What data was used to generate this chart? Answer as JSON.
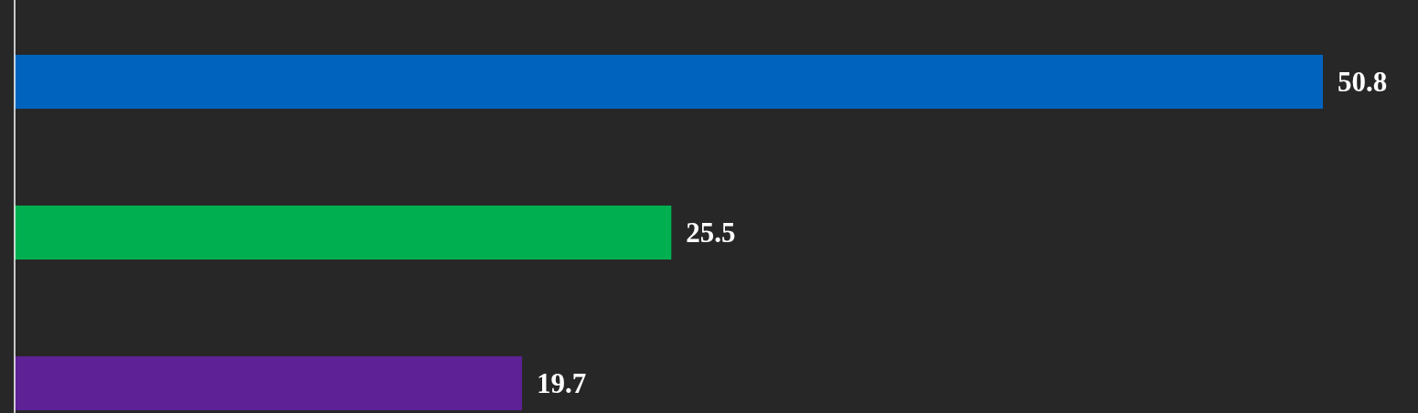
{
  "chart_data": {
    "type": "bar",
    "orientation": "horizontal",
    "categories": [
      null,
      null,
      null
    ],
    "values": [
      50.8,
      25.5,
      19.7
    ],
    "colors": [
      "#0063be",
      "#00b050",
      "#5e2196"
    ],
    "data_labels": true
  }
}
